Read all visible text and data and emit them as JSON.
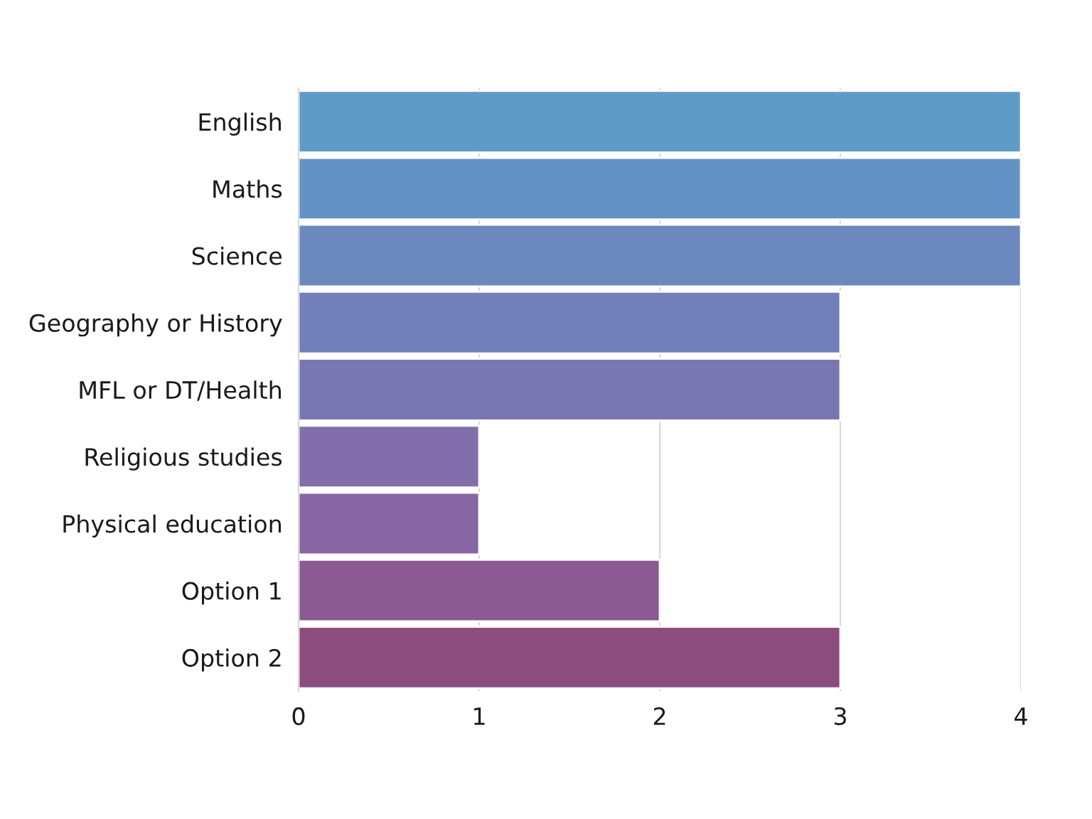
{
  "chart_data": {
    "type": "bar",
    "orientation": "horizontal",
    "categories": [
      "English",
      "Maths",
      "Science",
      "Geography or History",
      "MFL or DT/Health",
      "Religious studies",
      "Physical education",
      "Option 1",
      "Option 2"
    ],
    "values": [
      4,
      4,
      4,
      3,
      3,
      1,
      1,
      2,
      3
    ],
    "colors": [
      "#5f9bc7",
      "#6592c4",
      "#6b88bf",
      "#727fb9",
      "#7977b2",
      "#816eab",
      "#8866a3",
      "#8b5a92",
      "#8c4d7e"
    ],
    "xlim": [
      0,
      4
    ],
    "xticks": [
      0,
      1,
      2,
      3,
      4
    ],
    "grid": "x"
  }
}
